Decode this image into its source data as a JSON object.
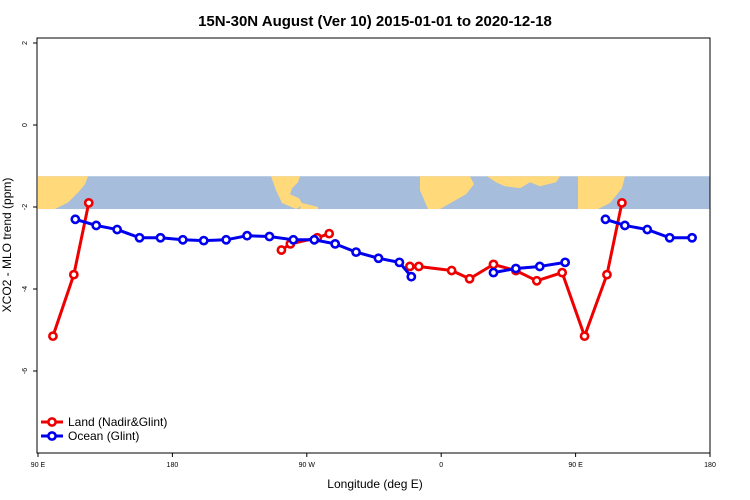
{
  "chart_data": {
    "type": "line",
    "title": "15N-30N August (Ver 10)   2015-01-01 to 2020-12-18",
    "xlabel": "Longitude (deg E)",
    "ylabel": "XCO2 - MLO trend (ppm)",
    "xlim": [
      90,
      540
    ],
    "ylim": [
      -8.1,
      2.1
    ],
    "x_ticks": [
      {
        "value": 90,
        "label": "90 E"
      },
      {
        "value": 180,
        "label": "180"
      },
      {
        "value": 270,
        "label": "90 W"
      },
      {
        "value": 360,
        "label": "0"
      },
      {
        "value": 450,
        "label": "90 E"
      },
      {
        "value": 540,
        "label": "180"
      }
    ],
    "y_ticks": [
      {
        "value": 2,
        "label": "2"
      },
      {
        "value": 0,
        "label": "0"
      },
      {
        "value": -2,
        "label": "-2"
      },
      {
        "value": -4,
        "label": "-4"
      },
      {
        "value": -6,
        "label": "-6"
      }
    ],
    "map_band": {
      "y_top": -1.25,
      "y_bottom": -2.05,
      "land_color": "#ffd97a",
      "ocean_color": "#a6bedc"
    },
    "legend_position": "bottom-left",
    "series": [
      {
        "name": "Land (Nadir&Glint)",
        "color": "#ee0000",
        "segments": [
          [
            [
              100,
              -5.15
            ],
            [
              114,
              -3.65
            ],
            [
              124,
              -1.9
            ]
          ],
          [
            [
              253,
              -3.05
            ],
            [
              259,
              -2.9
            ],
            [
              277,
              -2.75
            ],
            [
              285,
              -2.65
            ]
          ],
          [
            [
              339,
              -3.45
            ],
            [
              345,
              -3.45
            ],
            [
              367,
              -3.55
            ],
            [
              379,
              -3.75
            ],
            [
              395,
              -3.4
            ],
            [
              410,
              -3.55
            ],
            [
              424,
              -3.8
            ],
            [
              441,
              -3.6
            ],
            [
              456,
              -5.15
            ],
            [
              471,
              -3.65
            ],
            [
              481,
              -1.9
            ]
          ]
        ]
      },
      {
        "name": "Ocean (Glint)",
        "color": "#0000ee",
        "segments": [
          [
            [
              115,
              -2.3
            ],
            [
              129,
              -2.45
            ],
            [
              143,
              -2.55
            ],
            [
              158,
              -2.75
            ],
            [
              172,
              -2.75
            ],
            [
              187,
              -2.8
            ],
            [
              201,
              -2.82
            ],
            [
              216,
              -2.8
            ],
            [
              230,
              -2.7
            ],
            [
              245,
              -2.72
            ],
            [
              261,
              -2.8
            ],
            [
              275,
              -2.8
            ],
            [
              289,
              -2.9
            ],
            [
              303,
              -3.1
            ],
            [
              318,
              -3.25
            ],
            [
              332,
              -3.35
            ],
            [
              340,
              -3.7
            ]
          ],
          [
            [
              395,
              -3.6
            ],
            [
              410,
              -3.5
            ],
            [
              426,
              -3.45
            ],
            [
              443,
              -3.35
            ]
          ],
          [
            [
              470,
              -2.3
            ],
            [
              483,
              -2.45
            ],
            [
              498,
              -2.55
            ],
            [
              513,
              -2.75
            ],
            [
              528,
              -2.75
            ]
          ]
        ]
      }
    ]
  }
}
